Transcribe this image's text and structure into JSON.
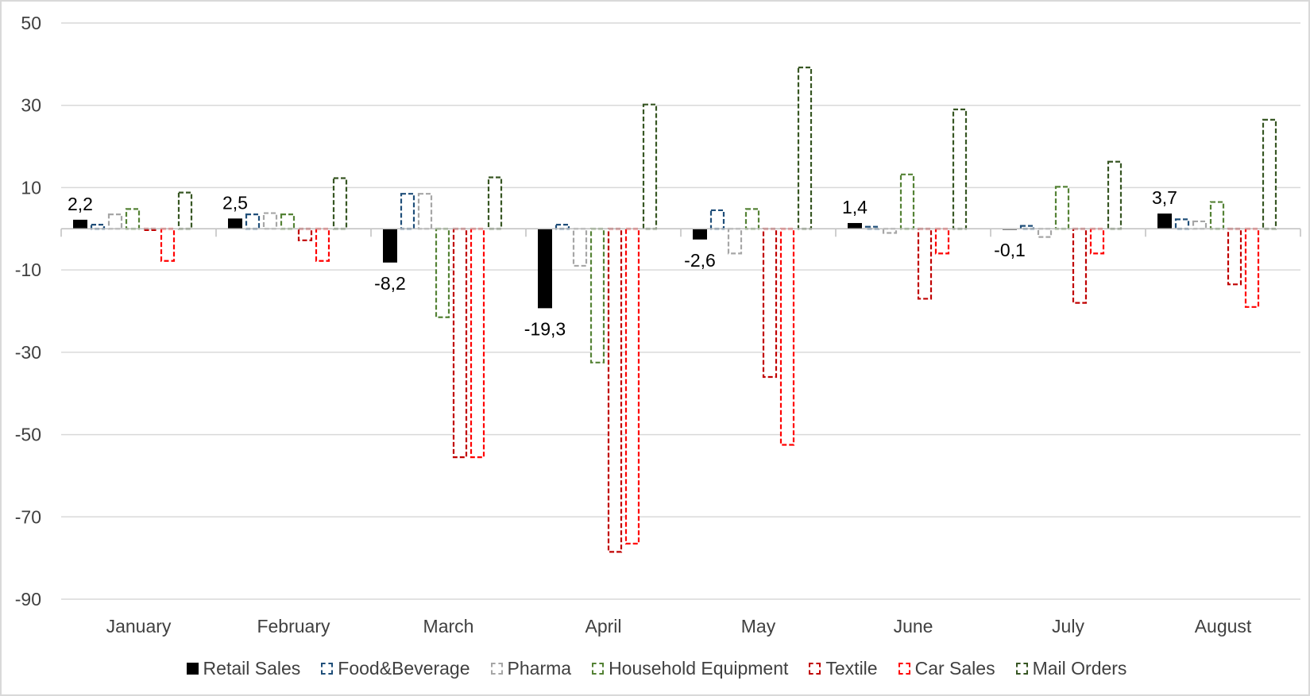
{
  "chart_data": {
    "type": "bar",
    "title": "",
    "xlabel": "",
    "ylabel": "",
    "ylim": [
      -90,
      50
    ],
    "yticks": [
      50,
      30,
      10,
      -10,
      -30,
      -50,
      -70,
      -90
    ],
    "grid": true,
    "legend_position": "bottom",
    "categories": [
      "January",
      "February",
      "March",
      "April",
      "May",
      "June",
      "July",
      "August"
    ],
    "series": [
      {
        "name": "Retail Sales",
        "color": "#000000",
        "style": "solid",
        "values": [
          2.2,
          2.5,
          -8.2,
          -19.3,
          -2.6,
          1.4,
          -0.1,
          3.7
        ],
        "data_labels": [
          "2,2",
          "2,5",
          "-8,2",
          "-19,3",
          "-2,6",
          "1,4",
          "-0,1",
          "3,7"
        ]
      },
      {
        "name": "Food&Beverage",
        "color": "#1f4e79",
        "style": "dashed",
        "values": [
          1,
          3.5,
          8.5,
          1,
          4.5,
          0.5,
          0.7,
          2.3
        ]
      },
      {
        "name": "Pharma",
        "color": "#a6a6a6",
        "style": "dashed",
        "values": [
          3.5,
          3.8,
          8.5,
          -9,
          -6,
          -1,
          -2,
          1.8
        ]
      },
      {
        "name": "Household Equipment",
        "color": "#548235",
        "style": "dashed",
        "values": [
          4.8,
          3.5,
          -21.5,
          -32.5,
          4.8,
          13.2,
          10.2,
          6.5
        ]
      },
      {
        "name": "Textile",
        "color": "#c00000",
        "style": "dashed",
        "values": [
          -0.3,
          -2.8,
          -55.5,
          -78.5,
          -36,
          -17,
          -18,
          -13.5
        ]
      },
      {
        "name": "Car Sales",
        "color": "#ff0000",
        "style": "dashed",
        "values": [
          -7.8,
          -7.8,
          -55.5,
          -76.5,
          -52.5,
          -6,
          -6,
          -19
        ]
      },
      {
        "name": "Mail Orders",
        "color": "#375623",
        "style": "dashed",
        "values": [
          8.8,
          12.3,
          12.5,
          30.2,
          39.2,
          29,
          16.3,
          26.5
        ]
      }
    ]
  }
}
